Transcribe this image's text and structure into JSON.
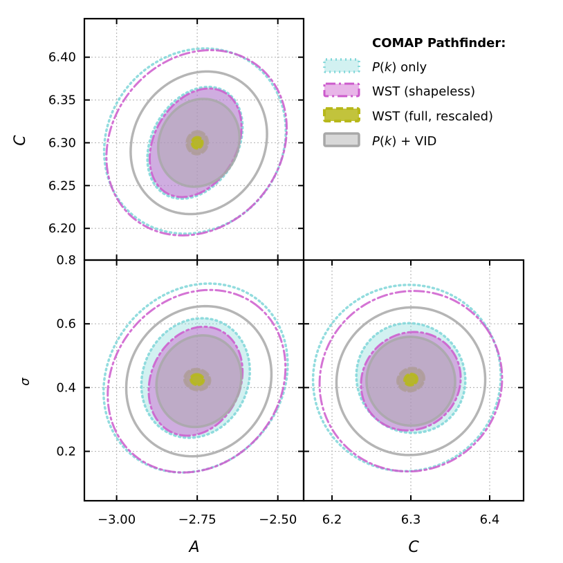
{
  "chart_data": {
    "type": "corner-ellipse-contours",
    "legend": {
      "title": "COMAP Pathfinder:",
      "entries": [
        {
          "key": "pk",
          "pre": "P",
          "var": "k",
          "post": " only"
        },
        {
          "key": "wst_shapeless",
          "pre": "",
          "var": "",
          "post": "WST (shapeless)"
        },
        {
          "key": "wst_full",
          "pre": "",
          "var": "",
          "post": "WST (full, rescaled)"
        },
        {
          "key": "pk_vid",
          "pre": "P",
          "var": "k",
          "post": " + VID"
        }
      ]
    },
    "styles": {
      "pk": {
        "color": "#7fd6d8",
        "fill_opacity": 0.35,
        "dash": "2 5",
        "width": 3.5
      },
      "wst_shapeless": {
        "color": "#cc5acc",
        "fill_opacity": 0.45,
        "dash": "14 5 3 5",
        "width": 3
      },
      "wst_full": {
        "color": "#b7b81a",
        "fill_opacity": 0.85,
        "dash": "10 5",
        "width": 4
      },
      "pk_vid": {
        "color": "#a8a8a8",
        "fill_opacity": 0.45,
        "dash": "",
        "width": 3.5
      }
    },
    "parameters": {
      "A": {
        "label": "A",
        "range": [
          -3.1,
          -2.42
        ],
        "ticks": [
          -3.0,
          -2.75,
          -2.5
        ],
        "tick_labels": [
          "−3.00",
          "−2.75",
          "−2.50"
        ]
      },
      "C": {
        "label": "C",
        "range": [
          6.163,
          6.445
        ],
        "ticks": [
          6.2,
          6.25,
          6.3,
          6.35,
          6.4
        ],
        "tick_labels": [
          "6.20",
          "6.25",
          "6.30",
          "6.35",
          "6.40"
        ]
      },
      "C_bottom": {
        "label": "C",
        "range": [
          6.164,
          6.443
        ],
        "ticks": [
          6.2,
          6.3,
          6.4
        ],
        "tick_labels": [
          "6.2",
          "6.3",
          "6.4"
        ]
      },
      "sigma": {
        "label": "σ",
        "range": [
          0.045,
          0.8
        ],
        "ticks": [
          0.2,
          0.4,
          0.6,
          0.8
        ],
        "tick_labels": [
          "0.2",
          "0.4",
          "0.6",
          "0.8"
        ]
      }
    },
    "panels": [
      {
        "name": "A-vs-C",
        "x": "A",
        "y": "C",
        "ellipses": [
          {
            "series": "pk",
            "level": "outer",
            "cx": -2.757,
            "cy": 6.302,
            "sx": 0.3,
            "sy": 0.101,
            "angle": 50,
            "filled": false
          },
          {
            "series": "pk",
            "level": "inner",
            "cx": -2.757,
            "cy": 6.3,
            "sx": 0.185,
            "sy": 0.05,
            "angle": 60,
            "filled": true
          },
          {
            "series": "wst_shapeless",
            "level": "outer",
            "cx": -2.752,
            "cy": 6.3,
            "sx": 0.305,
            "sy": 0.098,
            "angle": 50,
            "filled": false
          },
          {
            "series": "wst_shapeless",
            "level": "inner",
            "cx": -2.755,
            "cy": 6.3,
            "sx": 0.18,
            "sy": 0.048,
            "angle": 60,
            "filled": true
          },
          {
            "series": "pk_vid",
            "level": "outer",
            "cx": -2.745,
            "cy": 6.3,
            "sx": 0.23,
            "sy": 0.076,
            "angle": 55,
            "filled": false
          },
          {
            "series": "pk_vid",
            "level": "inner",
            "cx": -2.745,
            "cy": 6.3,
            "sx": 0.14,
            "sy": 0.046,
            "angle": 62,
            "filled": true
          },
          {
            "series": "wst_full",
            "level": "outer",
            "cx": -2.75,
            "cy": 6.3,
            "sx": 0.035,
            "sy": 0.012,
            "angle": 80,
            "filled": true
          },
          {
            "series": "wst_full",
            "level": "inner",
            "cx": -2.75,
            "cy": 6.3,
            "sx": 0.017,
            "sy": 0.006,
            "angle": 80,
            "filled": true
          }
        ]
      },
      {
        "name": "A-vs-sigma",
        "x": "A",
        "y": "sigma",
        "ellipses": [
          {
            "series": "pk",
            "level": "outer",
            "cx": -2.755,
            "cy": 0.43,
            "sx": 0.31,
            "sy": 0.27,
            "angle": 50,
            "filled": false
          },
          {
            "series": "pk",
            "level": "inner",
            "cx": -2.755,
            "cy": 0.43,
            "sx": 0.19,
            "sy": 0.165,
            "angle": 65,
            "filled": true
          },
          {
            "series": "wst_shapeless",
            "level": "outer",
            "cx": -2.752,
            "cy": 0.42,
            "sx": 0.3,
            "sy": 0.26,
            "angle": 50,
            "filled": false
          },
          {
            "series": "wst_shapeless",
            "level": "inner",
            "cx": -2.755,
            "cy": 0.42,
            "sx": 0.175,
            "sy": 0.14,
            "angle": 65,
            "filled": true
          },
          {
            "series": "pk_vid",
            "level": "outer",
            "cx": -2.745,
            "cy": 0.42,
            "sx": 0.24,
            "sy": 0.22,
            "angle": 55,
            "filled": false
          },
          {
            "series": "pk_vid",
            "level": "inner",
            "cx": -2.745,
            "cy": 0.42,
            "sx": 0.145,
            "sy": 0.13,
            "angle": 65,
            "filled": true
          },
          {
            "series": "wst_full",
            "level": "outer",
            "cx": -2.75,
            "cy": 0.425,
            "sx": 0.032,
            "sy": 0.04,
            "angle": 80,
            "filled": true
          },
          {
            "series": "wst_full",
            "level": "inner",
            "cx": -2.75,
            "cy": 0.425,
            "sx": 0.016,
            "sy": 0.02,
            "angle": 80,
            "filled": true
          }
        ]
      },
      {
        "name": "C-vs-sigma",
        "x": "C_bottom",
        "y": "sigma",
        "ellipses": [
          {
            "series": "pk",
            "level": "outer",
            "cx": 6.295,
            "cy": 0.43,
            "sx": 0.12,
            "sy": 0.29,
            "angle": 35,
            "filled": false
          },
          {
            "series": "pk",
            "level": "inner",
            "cx": 6.3,
            "cy": 0.43,
            "sx": 0.068,
            "sy": 0.175,
            "angle": 40,
            "filled": true
          },
          {
            "series": "wst_shapeless",
            "level": "outer",
            "cx": 6.3,
            "cy": 0.42,
            "sx": 0.117,
            "sy": 0.28,
            "angle": 35,
            "filled": false
          },
          {
            "series": "wst_shapeless",
            "level": "inner",
            "cx": 6.3,
            "cy": 0.42,
            "sx": 0.065,
            "sy": 0.15,
            "angle": 40,
            "filled": true
          },
          {
            "series": "pk_vid",
            "level": "outer",
            "cx": 6.3,
            "cy": 0.42,
            "sx": 0.095,
            "sy": 0.23,
            "angle": 35,
            "filled": false
          },
          {
            "series": "pk_vid",
            "level": "inner",
            "cx": 6.3,
            "cy": 0.42,
            "sx": 0.056,
            "sy": 0.14,
            "angle": 40,
            "filled": true
          },
          {
            "series": "wst_full",
            "level": "outer",
            "cx": 6.3,
            "cy": 0.425,
            "sx": 0.017,
            "sy": 0.035,
            "angle": 20,
            "filled": true
          },
          {
            "series": "wst_full",
            "level": "inner",
            "cx": 6.3,
            "cy": 0.425,
            "sx": 0.008,
            "sy": 0.017,
            "angle": 20,
            "filled": true
          }
        ]
      }
    ]
  }
}
